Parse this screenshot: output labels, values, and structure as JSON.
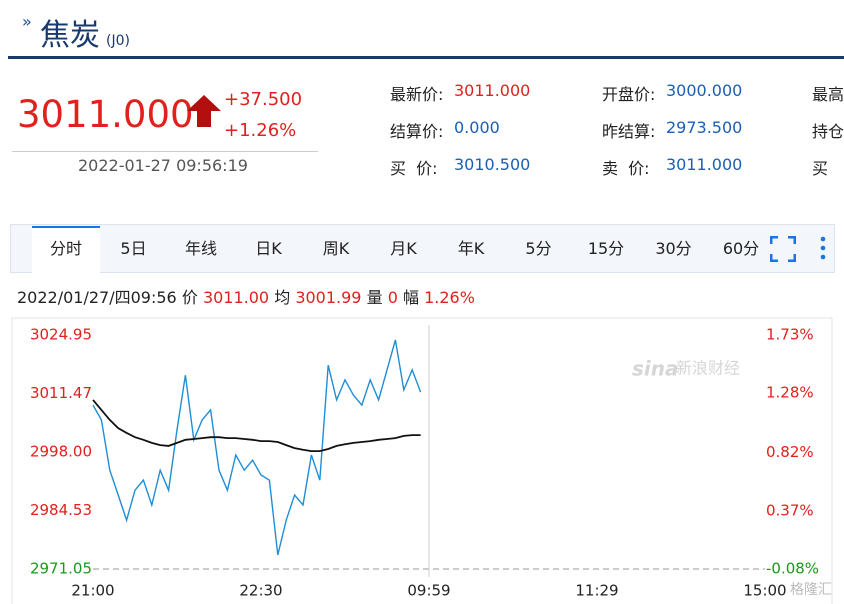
{
  "header": {
    "title": "焦炭",
    "code": "(J0)"
  },
  "quote": {
    "price": "3011.000",
    "change": "+37.500",
    "change_pct": "+1.26%",
    "time": "2022-01-27 09:56:19"
  },
  "info": {
    "rows": [
      [
        {
          "label": "最新价:",
          "value": "3011.000",
          "red": true
        },
        {
          "label": "开盘价:",
          "value": "3000.000"
        },
        {
          "label": "最高"
        }
      ],
      [
        {
          "label": "结算价:",
          "value": "0.000"
        },
        {
          "label": "昨结算:",
          "value": "2973.500"
        },
        {
          "label": "持仓"
        }
      ],
      [
        {
          "label": "买  价:",
          "value": "3010.500"
        },
        {
          "label": "卖  价:",
          "value": "3011.000"
        },
        {
          "label": "买"
        }
      ]
    ]
  },
  "tabs": [
    "分时",
    "5日",
    "年线",
    "日K",
    "周K",
    "月K",
    "年K",
    "5分",
    "15分",
    "30分",
    "60分"
  ],
  "status": {
    "datetime": "2022/01/27/四09:56",
    "items": [
      {
        "label": "价",
        "value": "3011.00"
      },
      {
        "label": "均",
        "value": "3001.99"
      },
      {
        "label": "量",
        "value": "0"
      },
      {
        "label": "幅",
        "value": "1.26%"
      }
    ]
  },
  "watermarks": [
    "sina",
    "新浪财经",
    "格隆汇"
  ],
  "chart_data": {
    "type": "line",
    "categories": [
      "21:00",
      null,
      null,
      null,
      null,
      null,
      null,
      null,
      null,
      null,
      null,
      null,
      null,
      null,
      null,
      null,
      null,
      null,
      null,
      null,
      "22:30",
      null,
      null,
      null,
      null,
      null,
      null,
      null,
      null,
      null,
      null,
      null,
      null,
      null,
      null,
      null,
      null,
      null,
      null,
      null,
      "09:59",
      null,
      null,
      null,
      null,
      null,
      null,
      null,
      null,
      null,
      null,
      null,
      null,
      null,
      null,
      null,
      null,
      null,
      null,
      null,
      "11:29",
      null,
      null,
      null,
      null,
      null,
      null,
      null,
      null,
      null,
      null,
      null,
      null,
      null,
      null,
      null,
      null,
      null,
      null,
      null,
      "15:00"
    ],
    "series": [
      {
        "name": "价",
        "color": "#1e8ed6",
        "values": [
          3008.8,
          3005.4,
          2993.8,
          2988.1,
          2982.3,
          2989.2,
          2991.5,
          2985.8,
          2993.8,
          2989.2,
          3003.1,
          3015.7,
          3000.8,
          3005.4,
          3007.7,
          2993.8,
          2989.2,
          2997.3,
          2993.8,
          2996.1,
          2992.7,
          2991.5,
          2974.3,
          2982.3,
          2988.1,
          2985.8,
          2997.3,
          2991.5,
          3018.0,
          3010.0,
          3014.6,
          3011.1,
          3008.8,
          3014.6,
          3010.0,
          3016.9,
          3023.8,
          3012.3,
          3016.9,
          3011.8,
          null,
          null,
          null,
          null,
          null,
          null,
          null,
          null,
          null,
          null,
          null,
          null,
          null,
          null,
          null,
          null,
          null,
          null,
          null,
          null,
          null,
          null,
          null,
          null,
          null,
          null,
          null,
          null,
          null,
          null,
          null,
          null,
          null,
          null,
          null,
          null,
          null,
          null,
          null,
          null,
          null
        ]
      },
      {
        "name": "均",
        "color": "#111111",
        "values": [
          3010.0,
          3007.7,
          3005.4,
          3003.5,
          3002.4,
          3001.4,
          3000.8,
          3000.1,
          2999.6,
          2999.4,
          3000.1,
          3000.8,
          3001.0,
          3001.2,
          3001.4,
          3001.4,
          3001.2,
          3001.2,
          3001.0,
          3000.8,
          3000.5,
          3000.5,
          3000.3,
          2999.6,
          2998.9,
          2998.5,
          2998.2,
          2998.2,
          2998.7,
          2999.4,
          2999.8,
          3000.1,
          3000.3,
          3000.5,
          3000.8,
          3001.0,
          3001.2,
          3001.7,
          3001.9,
          3001.9,
          null,
          null,
          null,
          null,
          null,
          null,
          null,
          null,
          null,
          null,
          null,
          null,
          null,
          null,
          null,
          null,
          null,
          null,
          null,
          null,
          null,
          null,
          null,
          null,
          null,
          null,
          null,
          null,
          null,
          null,
          null,
          null,
          null,
          null,
          null,
          null,
          null,
          null,
          null,
          null,
          null
        ]
      }
    ],
    "ylim": [
      2971.05,
      3024.95
    ],
    "yticks": [
      3024.95,
      3011.47,
      {
        "value": 2998,
        "label": "2998.00"
      },
      2984.53,
      2971.05
    ],
    "y2lim": [
      -0.08,
      1.73
    ],
    "y2ticks": [
      {
        "value": 1.73,
        "label": "1.73%"
      },
      {
        "value": 1.28,
        "label": "1.28%"
      },
      {
        "value": 0.82,
        "label": "0.82%"
      },
      {
        "value": 0.37,
        "label": "0.37%"
      },
      {
        "value": -0.08,
        "label": "-0.08%"
      }
    ],
    "up_color": "#e0211d",
    "down_color": "#1a9a1a"
  }
}
